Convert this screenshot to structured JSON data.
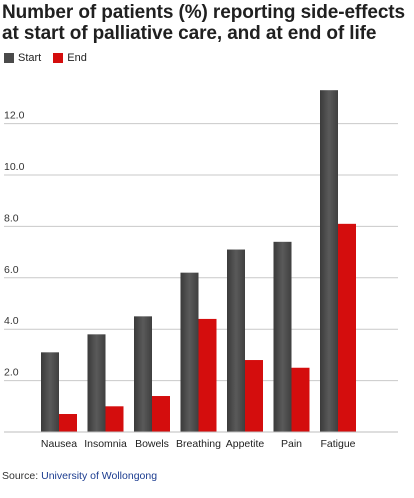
{
  "chart_data": {
    "type": "bar",
    "title": "Number of patients (%) reporting side-effects at start of palliative care, and at end of life",
    "xlabel": "",
    "ylabel": "",
    "categories": [
      "Nausea",
      "Insomnia",
      "Bowels",
      "Breathing",
      "Appetite",
      "Pain",
      "Fatigue"
    ],
    "series": [
      {
        "name": "Start",
        "color": "#4a4a4a",
        "values": [
          3.1,
          3.8,
          4.5,
          6.2,
          7.1,
          7.4,
          13.3
        ]
      },
      {
        "name": "End",
        "color": "#d40d0d",
        "values": [
          0.7,
          1.0,
          1.4,
          4.4,
          2.8,
          2.5,
          8.1
        ]
      }
    ],
    "yticks": [
      "2.0",
      "4.0",
      "6.0",
      "8.0",
      "10.0",
      "12.0"
    ],
    "ylim": [
      0,
      14
    ],
    "grid": true,
    "legend_position": "top-left"
  },
  "source": {
    "label": "Source:",
    "name": "University of Wollongong"
  }
}
